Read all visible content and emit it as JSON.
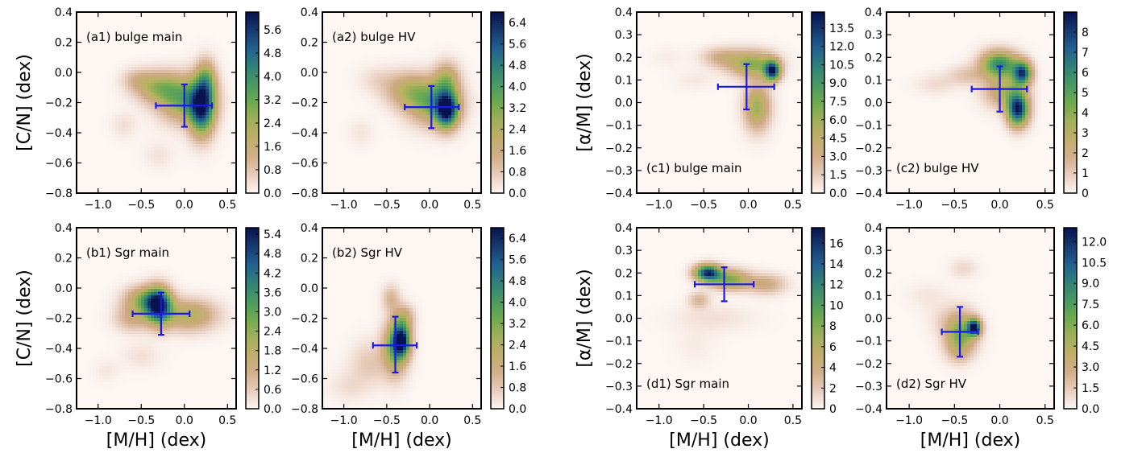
{
  "chart_data": [
    {
      "type": "heatmap",
      "panel": "a1",
      "annotation": "(a1) bulge main",
      "ylabel": "[C/N]    (dex)",
      "xlabel": "",
      "xlim": [
        -1.25,
        0.6
      ],
      "ylim": [
        -0.8,
        0.4
      ],
      "xticks": [
        -1.0,
        -0.5,
        0.0,
        0.5
      ],
      "xticklabels": [
        "−1.0",
        "−0.5",
        "0.0",
        "0.5"
      ],
      "yticks": [
        -0.8,
        -0.6,
        -0.4,
        -0.2,
        0.0,
        0.2,
        0.4
      ],
      "yticklabels": [
        "−0.8",
        "−0.6",
        "−0.4",
        "−0.2",
        "0.0",
        "0.2",
        "0.4"
      ],
      "colorbar": {
        "min": 0,
        "max": 6.2,
        "ticks": [
          0.0,
          0.8,
          1.6,
          2.4,
          3.2,
          4.0,
          4.8,
          5.6
        ],
        "ticklabels": [
          "0.0",
          "0.8",
          "1.6",
          "2.4",
          "3.2",
          "4.0",
          "4.8",
          "5.6"
        ]
      },
      "errorbar": {
        "x": 0.0,
        "y": -0.22,
        "xerr": [
          0.33,
          0.32
        ],
        "yerr": [
          0.14,
          0.14
        ]
      },
      "blobs": [
        {
          "x": 0.2,
          "y": -0.24,
          "sx": 0.1,
          "sy": 0.12,
          "w": 5.2
        },
        {
          "x": 0.0,
          "y": -0.18,
          "sx": 0.2,
          "sy": 0.1,
          "w": 3.0
        },
        {
          "x": -0.3,
          "y": -0.1,
          "sx": 0.18,
          "sy": 0.07,
          "w": 2.2
        },
        {
          "x": 0.25,
          "y": -0.05,
          "sx": 0.08,
          "sy": 0.09,
          "w": 2.4
        },
        {
          "x": -0.55,
          "y": -0.05,
          "sx": 0.12,
          "sy": 0.05,
          "w": 0.9
        },
        {
          "x": -0.7,
          "y": -0.35,
          "sx": 0.1,
          "sy": 0.06,
          "w": 0.35
        },
        {
          "x": -0.3,
          "y": -0.55,
          "sx": 0.12,
          "sy": 0.06,
          "w": 0.3
        }
      ]
    },
    {
      "type": "heatmap",
      "panel": "a2",
      "annotation": "(a2) bulge HV",
      "ylabel": "",
      "xlabel": "",
      "xlim": [
        -1.25,
        0.6
      ],
      "ylim": [
        -0.8,
        0.4
      ],
      "xticks": [
        -1.0,
        -0.5,
        0.0,
        0.5
      ],
      "xticklabels": [
        "−1.0",
        "−0.5",
        "0.0",
        "0.5"
      ],
      "yticks": [
        -0.8,
        -0.6,
        -0.4,
        -0.2,
        0.0,
        0.2,
        0.4
      ],
      "yticklabels": [
        "−0.8",
        "−0.6",
        "−0.4",
        "−0.2",
        "0.0",
        "0.2",
        "0.4"
      ],
      "colorbar": {
        "min": 0,
        "max": 6.8,
        "ticks": [
          0.0,
          0.8,
          1.6,
          2.4,
          3.2,
          4.0,
          4.8,
          5.6,
          6.4
        ],
        "ticklabels": [
          "0.0",
          "0.8",
          "1.6",
          "2.4",
          "3.2",
          "4.0",
          "4.8",
          "5.6",
          "6.4"
        ]
      },
      "errorbar": {
        "x": 0.02,
        "y": -0.23,
        "xerr": [
          0.31,
          0.32
        ],
        "yerr": [
          0.14,
          0.14
        ]
      },
      "blobs": [
        {
          "x": 0.2,
          "y": -0.25,
          "sx": 0.09,
          "sy": 0.08,
          "w": 6.0
        },
        {
          "x": 0.05,
          "y": -0.2,
          "sx": 0.2,
          "sy": 0.1,
          "w": 3.2
        },
        {
          "x": -0.25,
          "y": -0.12,
          "sx": 0.18,
          "sy": 0.08,
          "w": 2.0
        },
        {
          "x": 0.2,
          "y": -0.05,
          "sx": 0.1,
          "sy": 0.08,
          "w": 2.2
        },
        {
          "x": -0.6,
          "y": -0.05,
          "sx": 0.15,
          "sy": 0.06,
          "w": 0.5
        },
        {
          "x": -0.8,
          "y": -0.4,
          "sx": 0.1,
          "sy": 0.06,
          "w": 0.3
        }
      ]
    },
    {
      "type": "heatmap",
      "panel": "b1",
      "annotation": "(b1) Sgr main",
      "ylabel": "[C/N]    (dex)",
      "xlabel": "[M/H]    (dex)",
      "xlim": [
        -1.25,
        0.6
      ],
      "ylim": [
        -0.8,
        0.4
      ],
      "xticks": [
        -1.0,
        -0.5,
        0.0,
        0.5
      ],
      "xticklabels": [
        "−1.0",
        "−0.5",
        "0.0",
        "0.5"
      ],
      "yticks": [
        -0.8,
        -0.6,
        -0.4,
        -0.2,
        0.0,
        0.2,
        0.4
      ],
      "yticklabels": [
        "−0.8",
        "−0.6",
        "−0.4",
        "−0.2",
        "0.0",
        "0.2",
        "0.4"
      ],
      "colorbar": {
        "min": 0,
        "max": 5.6,
        "ticks": [
          0.0,
          0.6,
          1.2,
          1.8,
          2.4,
          3.0,
          3.6,
          4.2,
          4.8,
          5.4
        ],
        "ticklabels": [
          "0.0",
          "0.6",
          "1.2",
          "1.8",
          "2.4",
          "3.0",
          "3.6",
          "4.2",
          "4.8",
          "5.4"
        ]
      },
      "errorbar": {
        "x": -0.27,
        "y": -0.17,
        "xerr": [
          0.33,
          0.33
        ],
        "yerr": [
          0.14,
          0.14
        ]
      },
      "blobs": [
        {
          "x": -0.3,
          "y": -0.12,
          "sx": 0.1,
          "sy": 0.08,
          "w": 5.0
        },
        {
          "x": -0.45,
          "y": -0.08,
          "sx": 0.16,
          "sy": 0.06,
          "w": 2.5
        },
        {
          "x": 0.05,
          "y": -0.18,
          "sx": 0.22,
          "sy": 0.07,
          "w": 2.0
        },
        {
          "x": -0.6,
          "y": -0.2,
          "sx": 0.14,
          "sy": 0.06,
          "w": 1.2
        },
        {
          "x": -0.5,
          "y": -0.45,
          "sx": 0.15,
          "sy": 0.06,
          "w": 0.3
        },
        {
          "x": -0.9,
          "y": -0.55,
          "sx": 0.1,
          "sy": 0.05,
          "w": 0.2
        }
      ]
    },
    {
      "type": "heatmap",
      "panel": "b2",
      "annotation": "(b2) Sgr HV",
      "ylabel": "",
      "xlabel": "[M/H]    (dex)",
      "xlim": [
        -1.25,
        0.6
      ],
      "ylim": [
        -0.8,
        0.4
      ],
      "xticks": [
        -1.0,
        -0.5,
        0.0,
        0.5
      ],
      "xticklabels": [
        "−1.0",
        "−0.5",
        "0.0",
        "0.5"
      ],
      "yticks": [
        -0.8,
        -0.6,
        -0.4,
        -0.2,
        0.0,
        0.2,
        0.4
      ],
      "yticklabels": [
        "−0.8",
        "−0.6",
        "−0.4",
        "−0.2",
        "0.0",
        "0.2",
        "0.4"
      ],
      "colorbar": {
        "min": 0,
        "max": 6.8,
        "ticks": [
          0.0,
          0.8,
          1.6,
          2.4,
          3.2,
          4.0,
          4.8,
          5.6,
          6.4
        ],
        "ticklabels": [
          "0.0",
          "0.8",
          "1.6",
          "2.4",
          "3.2",
          "4.0",
          "4.8",
          "5.6",
          "6.4"
        ]
      },
      "errorbar": {
        "x": -0.4,
        "y": -0.38,
        "xerr": [
          0.26,
          0.25
        ],
        "yerr": [
          0.18,
          0.19
        ]
      },
      "blobs": [
        {
          "x": -0.33,
          "y": -0.35,
          "sx": 0.07,
          "sy": 0.07,
          "w": 6.0
        },
        {
          "x": -0.4,
          "y": -0.4,
          "sx": 0.1,
          "sy": 0.12,
          "w": 3.2
        },
        {
          "x": -0.3,
          "y": -0.2,
          "sx": 0.08,
          "sy": 0.06,
          "w": 1.8
        },
        {
          "x": -0.45,
          "y": -0.07,
          "sx": 0.07,
          "sy": 0.06,
          "w": 1.2
        },
        {
          "x": -0.7,
          "y": -0.5,
          "sx": 0.15,
          "sy": 0.1,
          "w": 0.8
        },
        {
          "x": -0.95,
          "y": -0.65,
          "sx": 0.15,
          "sy": 0.07,
          "w": 0.4
        }
      ]
    },
    {
      "type": "heatmap",
      "panel": "c1",
      "annotation": "(c1) bulge main",
      "ylabel": "[α/M]    (dex)",
      "xlabel": "",
      "xlim": [
        -1.25,
        0.6
      ],
      "ylim": [
        -0.4,
        0.4
      ],
      "xticks": [
        -1.0,
        -0.5,
        0.0,
        0.5
      ],
      "xticklabels": [
        "−1.0",
        "−0.5",
        "0.0",
        "0.5"
      ],
      "yticks": [
        -0.4,
        -0.3,
        -0.2,
        -0.1,
        0.0,
        0.1,
        0.2,
        0.3,
        0.4
      ],
      "yticklabels": [
        "−0.4",
        "−0.3",
        "−0.2",
        "−0.1",
        "0.0",
        "0.1",
        "0.2",
        "0.3",
        "0.4"
      ],
      "colorbar": {
        "min": 0,
        "max": 14.8,
        "ticks": [
          0.0,
          1.5,
          3.0,
          4.5,
          6.0,
          7.5,
          9.0,
          10.5,
          12.0,
          13.5
        ],
        "ticklabels": [
          "0.0",
          "1.5",
          "3.0",
          "4.5",
          "6.0",
          "7.5",
          "9.0",
          "10.5",
          "12.0",
          "13.5"
        ]
      },
      "errorbar": {
        "x": -0.02,
        "y": 0.07,
        "xerr": [
          0.32,
          0.31
        ],
        "yerr": [
          0.1,
          0.1
        ]
      },
      "blobs": [
        {
          "x": 0.27,
          "y": 0.14,
          "sx": 0.06,
          "sy": 0.03,
          "w": 13.5
        },
        {
          "x": 0.05,
          "y": 0.17,
          "sx": 0.18,
          "sy": 0.04,
          "w": 6.5
        },
        {
          "x": 0.1,
          "y": -0.02,
          "sx": 0.1,
          "sy": 0.07,
          "w": 6.0
        },
        {
          "x": -0.3,
          "y": 0.2,
          "sx": 0.15,
          "sy": 0.03,
          "w": 3.0
        },
        {
          "x": -0.6,
          "y": 0.1,
          "sx": 0.15,
          "sy": 0.03,
          "w": 0.5
        },
        {
          "x": -0.9,
          "y": 0.2,
          "sx": 0.12,
          "sy": 0.03,
          "w": 0.4
        }
      ]
    },
    {
      "type": "heatmap",
      "panel": "c2",
      "annotation": "(c2) bulge HV",
      "ylabel": "",
      "xlabel": "",
      "xlim": [
        -1.25,
        0.6
      ],
      "ylim": [
        -0.4,
        0.4
      ],
      "xticks": [
        -1.0,
        -0.5,
        0.0,
        0.5
      ],
      "xticklabels": [
        "−1.0",
        "−0.5",
        "0.0",
        "0.5"
      ],
      "yticks": [
        -0.4,
        -0.3,
        -0.2,
        -0.1,
        0.0,
        0.1,
        0.2,
        0.3,
        0.4
      ],
      "yticklabels": [
        "−0.4",
        "−0.3",
        "−0.2",
        "−0.1",
        "0.0",
        "0.1",
        "0.2",
        "0.3",
        "0.4"
      ],
      "colorbar": {
        "min": 0,
        "max": 9,
        "ticks": [
          0,
          1,
          2,
          3,
          4,
          5,
          6,
          7,
          8
        ],
        "ticklabels": [
          "0",
          "1",
          "2",
          "3",
          "4",
          "5",
          "6",
          "7",
          "8"
        ]
      },
      "errorbar": {
        "x": 0.0,
        "y": 0.06,
        "xerr": [
          0.31,
          0.3
        ],
        "yerr": [
          0.1,
          0.1
        ]
      },
      "blobs": [
        {
          "x": 0.2,
          "y": -0.03,
          "sx": 0.08,
          "sy": 0.05,
          "w": 8.5
        },
        {
          "x": 0.25,
          "y": 0.13,
          "sx": 0.07,
          "sy": 0.035,
          "w": 7.5
        },
        {
          "x": 0.0,
          "y": 0.17,
          "sx": 0.14,
          "sy": 0.04,
          "w": 6.0
        },
        {
          "x": 0.05,
          "y": 0.05,
          "sx": 0.15,
          "sy": 0.05,
          "w": 3.0
        },
        {
          "x": -0.35,
          "y": 0.12,
          "sx": 0.15,
          "sy": 0.03,
          "w": 1.2
        },
        {
          "x": -0.7,
          "y": 0.08,
          "sx": 0.15,
          "sy": 0.03,
          "w": 0.6
        }
      ]
    },
    {
      "type": "heatmap",
      "panel": "d1",
      "annotation": "(d1) Sgr main",
      "ylabel": "[α/M]    (dex)",
      "xlabel": "[M/H]    (dex)",
      "xlim": [
        -1.25,
        0.6
      ],
      "ylim": [
        -0.4,
        0.4
      ],
      "xticks": [
        -1.0,
        -0.5,
        0.0,
        0.5
      ],
      "xticklabels": [
        "−1.0",
        "−0.5",
        "0.0",
        "0.5"
      ],
      "yticks": [
        -0.4,
        -0.3,
        -0.2,
        -0.1,
        0.0,
        0.1,
        0.2,
        0.3,
        0.4
      ],
      "yticklabels": [
        "−0.4",
        "−0.3",
        "−0.2",
        "−0.1",
        "0.0",
        "0.1",
        "0.2",
        "0.3",
        "0.4"
      ],
      "colorbar": {
        "min": 0,
        "max": 17.5,
        "ticks": [
          0,
          2,
          4,
          6,
          8,
          10,
          12,
          14,
          16
        ],
        "ticklabels": [
          "0",
          "2",
          "4",
          "6",
          "8",
          "10",
          "12",
          "14",
          "16"
        ]
      },
      "errorbar": {
        "x": -0.27,
        "y": 0.15,
        "xerr": [
          0.33,
          0.33
        ],
        "yerr": [
          0.075,
          0.075
        ]
      },
      "blobs": [
        {
          "x": -0.45,
          "y": 0.2,
          "sx": 0.1,
          "sy": 0.025,
          "w": 16.0
        },
        {
          "x": -0.2,
          "y": 0.17,
          "sx": 0.15,
          "sy": 0.03,
          "w": 8.0
        },
        {
          "x": 0.2,
          "y": 0.15,
          "sx": 0.15,
          "sy": 0.03,
          "w": 4.0
        },
        {
          "x": -0.55,
          "y": 0.08,
          "sx": 0.08,
          "sy": 0.025,
          "w": 3.0
        },
        {
          "x": -0.4,
          "y": 0.0,
          "sx": 0.3,
          "sy": 0.04,
          "w": 1.0
        },
        {
          "x": -0.6,
          "y": -0.12,
          "sx": 0.15,
          "sy": 0.05,
          "w": 0.5
        }
      ]
    },
    {
      "type": "heatmap",
      "panel": "d2",
      "annotation": "(d2) Sgr HV",
      "ylabel": "",
      "xlabel": "[M/H]    (dex)",
      "xlim": [
        -1.25,
        0.6
      ],
      "ylim": [
        -0.4,
        0.4
      ],
      "xticks": [
        -1.0,
        -0.5,
        0.0,
        0.5
      ],
      "xticklabels": [
        "−1.0",
        "−0.5",
        "0.0",
        "0.5"
      ],
      "yticks": [
        -0.4,
        -0.3,
        -0.2,
        -0.1,
        0.0,
        0.1,
        0.2,
        0.3,
        0.4
      ],
      "yticklabels": [
        "−0.4",
        "−0.3",
        "−0.2",
        "−0.1",
        "0.0",
        "0.1",
        "0.2",
        "0.3",
        "0.4"
      ],
      "colorbar": {
        "min": 0,
        "max": 13,
        "ticks": [
          0.0,
          1.5,
          3.0,
          4.5,
          6.0,
          7.5,
          9.0,
          10.5,
          12.0
        ],
        "ticklabels": [
          "0.0",
          "1.5",
          "3.0",
          "4.5",
          "6.0",
          "7.5",
          "9.0",
          "10.5",
          "12.0"
        ]
      },
      "errorbar": {
        "x": -0.44,
        "y": -0.06,
        "xerr": [
          0.2,
          0.2
        ],
        "yerr": [
          0.11,
          0.11
        ]
      },
      "blobs": [
        {
          "x": -0.28,
          "y": -0.04,
          "sx": 0.05,
          "sy": 0.025,
          "w": 12.0
        },
        {
          "x": -0.43,
          "y": -0.06,
          "sx": 0.12,
          "sy": 0.06,
          "w": 6.0
        },
        {
          "x": -0.45,
          "y": -0.14,
          "sx": 0.1,
          "sy": 0.04,
          "w": 2.0
        },
        {
          "x": -0.4,
          "y": 0.22,
          "sx": 0.1,
          "sy": 0.03,
          "w": 1.0
        },
        {
          "x": -0.8,
          "y": 0.1,
          "sx": 0.15,
          "sy": 0.04,
          "w": 0.5
        },
        {
          "x": -0.65,
          "y": 0.0,
          "sx": 0.12,
          "sy": 0.05,
          "w": 0.6
        }
      ]
    }
  ]
}
